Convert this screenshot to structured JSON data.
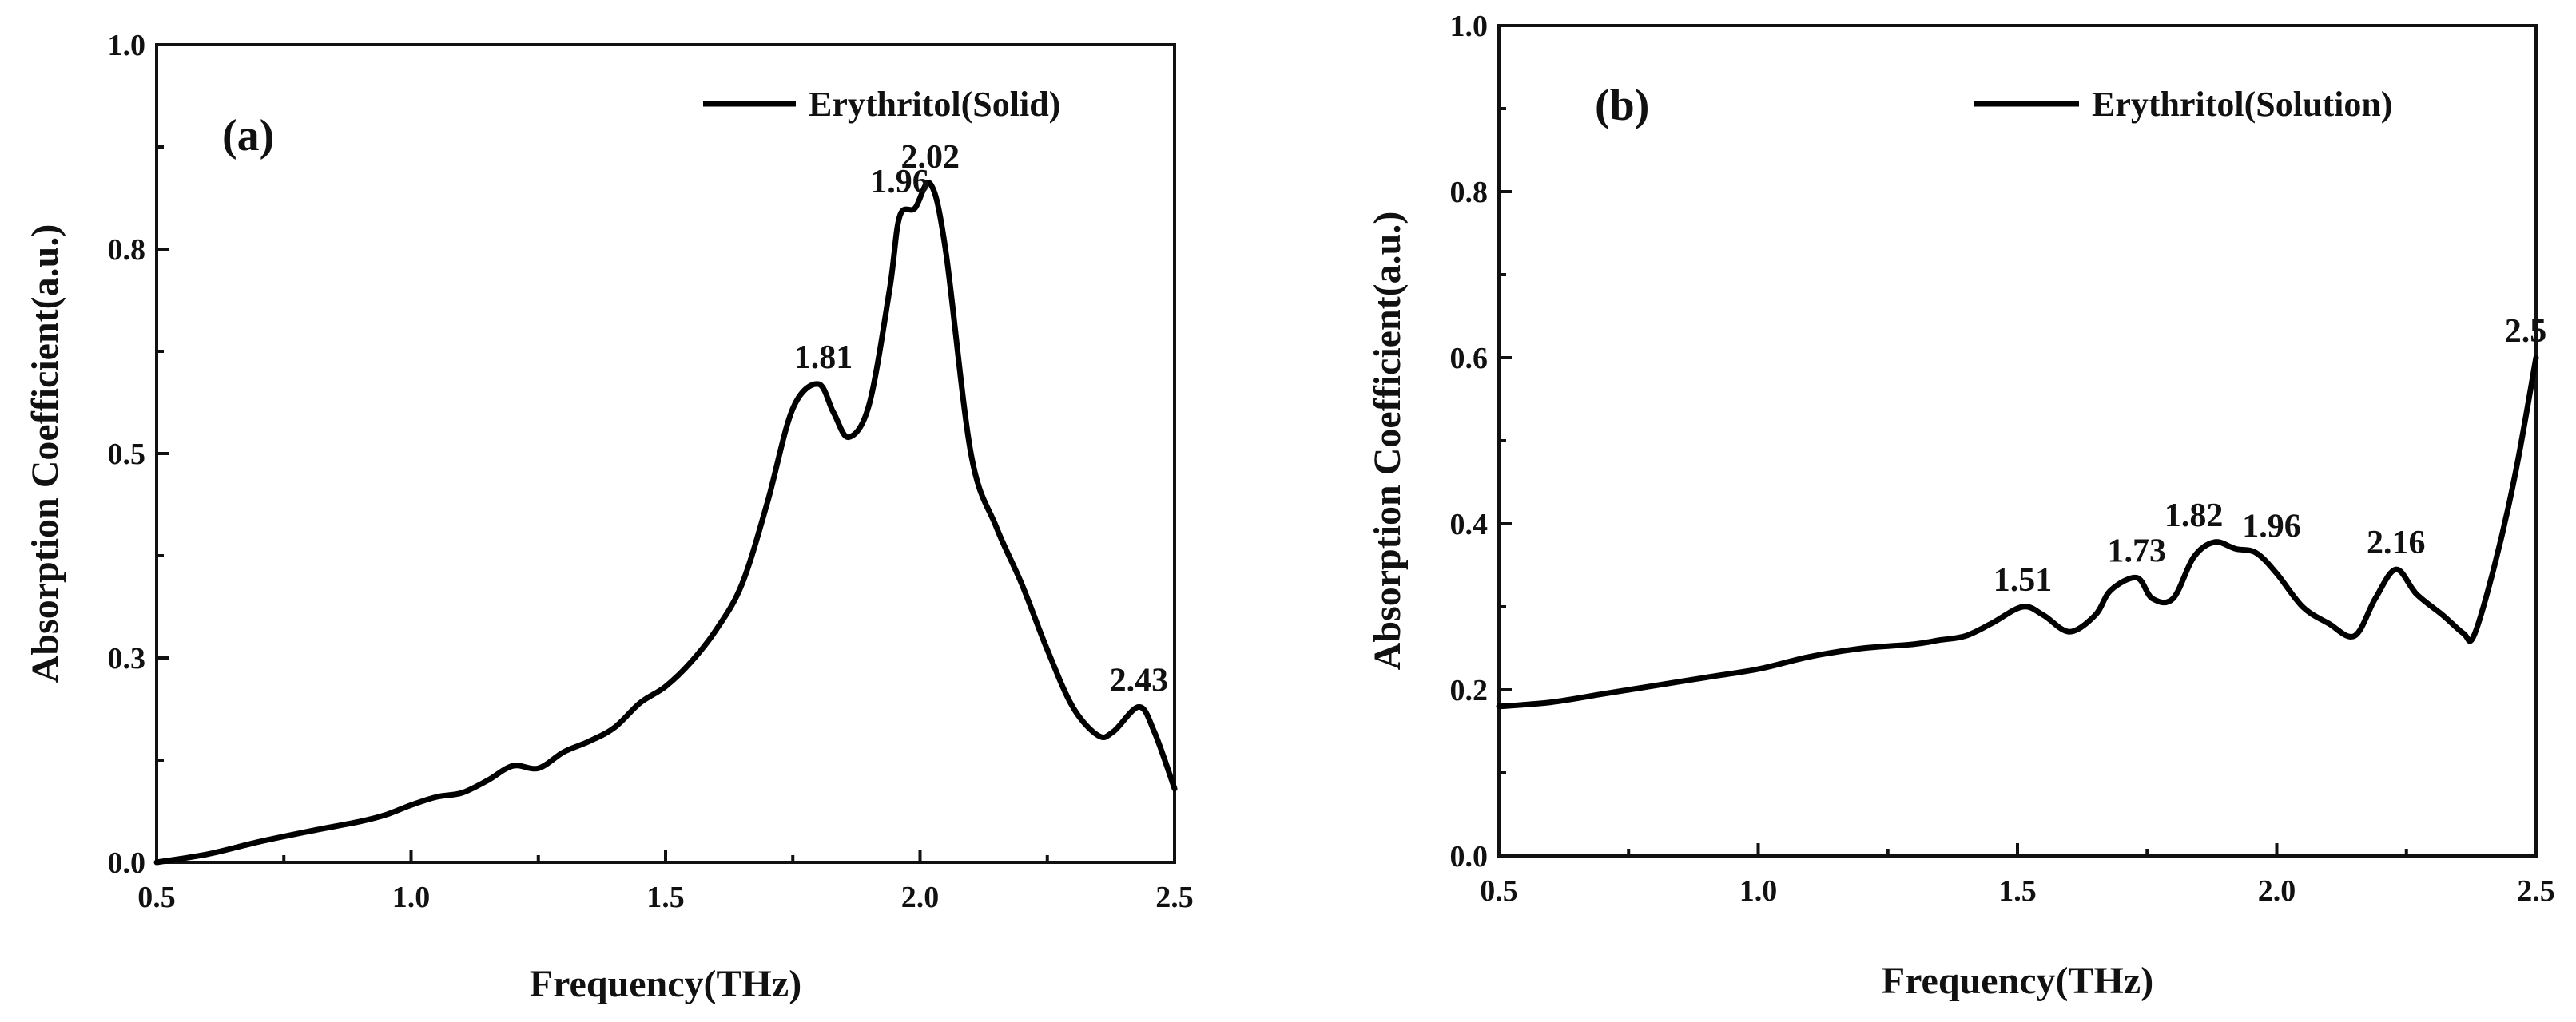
{
  "chart_data": [
    {
      "type": "line",
      "panel_label": "(a)",
      "xlabel": "Frequency(THz)",
      "ylabel": "Absorption Coefficient(a.u.)",
      "xlim": [
        0.5,
        2.5
      ],
      "ylim": [
        0.0,
        1.0
      ],
      "xticks": [
        0.5,
        1.0,
        1.5,
        2.0,
        2.5
      ],
      "xtick_labels": [
        "0.5",
        "1.0",
        "1.5",
        "2.0",
        "2.5"
      ],
      "yticks": [
        0.0,
        0.25,
        0.5,
        0.75,
        1.0
      ],
      "ytick_labels": [
        "0.0",
        "0.3",
        "0.5",
        "0.8",
        "1.0"
      ],
      "legend": {
        "location": "top-right",
        "entries": [
          "Erythritol(Solid)"
        ]
      },
      "series": [
        {
          "name": "Erythritol(Solid)",
          "x": [
            0.5,
            0.6,
            0.7,
            0.8,
            0.9,
            0.95,
            1.0,
            1.05,
            1.1,
            1.15,
            1.2,
            1.25,
            1.3,
            1.35,
            1.4,
            1.45,
            1.5,
            1.55,
            1.6,
            1.65,
            1.7,
            1.75,
            1.8,
            1.83,
            1.86,
            1.9,
            1.94,
            1.96,
            1.99,
            2.02,
            2.05,
            2.1,
            2.15,
            2.2,
            2.25,
            2.3,
            2.35,
            2.38,
            2.43,
            2.46,
            2.5
          ],
          "values": [
            0.0,
            0.01,
            0.025,
            0.038,
            0.05,
            0.058,
            0.07,
            0.08,
            0.085,
            0.1,
            0.118,
            0.115,
            0.135,
            0.148,
            0.165,
            0.195,
            0.215,
            0.245,
            0.285,
            0.34,
            0.44,
            0.555,
            0.585,
            0.55,
            0.52,
            0.56,
            0.7,
            0.79,
            0.8,
            0.83,
            0.75,
            0.5,
            0.41,
            0.34,
            0.26,
            0.19,
            0.155,
            0.16,
            0.19,
            0.16,
            0.09
          ]
        }
      ],
      "annotations": [
        {
          "text": "1.81",
          "x": 1.81,
          "y": 0.585
        },
        {
          "text": "1.96",
          "x": 1.96,
          "y": 0.8
        },
        {
          "text": "2.02",
          "x": 2.02,
          "y": 0.83
        },
        {
          "text": "2.43",
          "x": 2.43,
          "y": 0.19
        }
      ]
    },
    {
      "type": "line",
      "panel_label": "(b)",
      "xlabel": "Frequency(THz)",
      "ylabel": "Absorption Coefficient(a.u.)",
      "xlim": [
        0.5,
        2.5
      ],
      "ylim": [
        0.0,
        1.0
      ],
      "xticks": [
        0.5,
        1.0,
        1.5,
        2.0,
        2.5
      ],
      "xtick_labels": [
        "0.5",
        "1.0",
        "1.5",
        "2.0",
        "2.5"
      ],
      "yticks": [
        0.0,
        0.2,
        0.4,
        0.6,
        0.8,
        1.0
      ],
      "ytick_labels": [
        "0.0",
        "0.2",
        "0.4",
        "0.6",
        "0.8",
        "1.0"
      ],
      "legend": {
        "location": "top-right",
        "entries": [
          "Erythritol(Solution)"
        ]
      },
      "series": [
        {
          "name": "Erythritol(Solution)",
          "x": [
            0.5,
            0.6,
            0.7,
            0.8,
            0.9,
            1.0,
            1.1,
            1.2,
            1.3,
            1.35,
            1.4,
            1.45,
            1.51,
            1.55,
            1.6,
            1.65,
            1.68,
            1.73,
            1.76,
            1.8,
            1.84,
            1.88,
            1.92,
            1.96,
            2.0,
            2.05,
            2.1,
            2.15,
            2.19,
            2.23,
            2.27,
            2.32,
            2.36,
            2.38,
            2.42,
            2.46,
            2.5
          ],
          "values": [
            0.18,
            0.185,
            0.195,
            0.205,
            0.215,
            0.225,
            0.24,
            0.25,
            0.255,
            0.26,
            0.265,
            0.28,
            0.3,
            0.29,
            0.27,
            0.29,
            0.32,
            0.335,
            0.31,
            0.31,
            0.36,
            0.378,
            0.37,
            0.365,
            0.34,
            0.3,
            0.28,
            0.265,
            0.31,
            0.345,
            0.315,
            0.29,
            0.268,
            0.265,
            0.35,
            0.46,
            0.6
          ]
        }
      ],
      "annotations": [
        {
          "text": "1.51",
          "x": 1.51,
          "y": 0.3
        },
        {
          "text": "1.73",
          "x": 1.73,
          "y": 0.335
        },
        {
          "text": "1.82",
          "x": 1.84,
          "y": 0.378
        },
        {
          "text": "1.96",
          "x": 1.99,
          "y": 0.365
        },
        {
          "text": "2.16",
          "x": 2.23,
          "y": 0.345
        },
        {
          "text": "2.5",
          "x": 2.48,
          "y": 0.6
        }
      ]
    }
  ]
}
